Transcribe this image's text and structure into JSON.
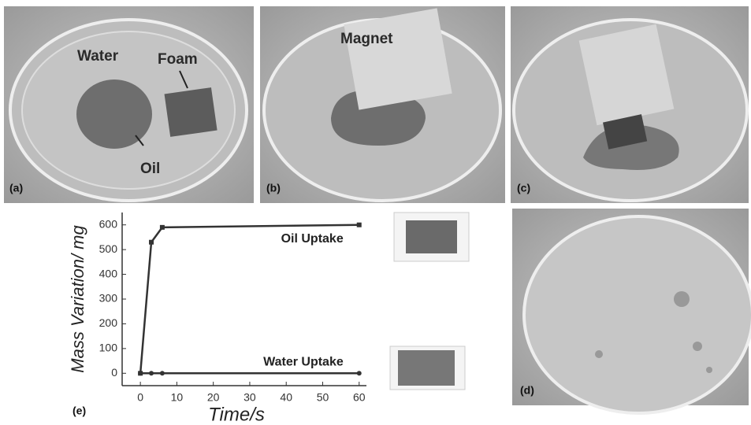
{
  "panels": [
    {
      "label": "(a)",
      "annotations": [
        "Water",
        "Foam",
        "Oil"
      ]
    },
    {
      "label": "(b)",
      "annotations": [
        "Magnet"
      ]
    },
    {
      "label": "(c)"
    },
    {
      "label": "(d)"
    }
  ],
  "chart_data": {
    "type": "line",
    "panel_label": "(e)",
    "x_label": "Time/s",
    "y_label": "Mass Variation/ mg",
    "x": [
      0,
      3,
      6,
      60
    ],
    "series": [
      {
        "name": "Oil Uptake",
        "color": "#333333",
        "marker": "square",
        "values": [
          0,
          530,
          590,
          600
        ]
      },
      {
        "name": "Water Uptake",
        "color": "#333333",
        "marker": "circle",
        "values": [
          0,
          0,
          0,
          0
        ]
      }
    ],
    "xlim": [
      -5,
      62
    ],
    "xticks": [
      0,
      10,
      20,
      30,
      40,
      50,
      60
    ],
    "ylim": [
      -50,
      650
    ],
    "yticks": [
      0,
      100,
      200,
      300,
      400,
      500,
      600
    ]
  }
}
